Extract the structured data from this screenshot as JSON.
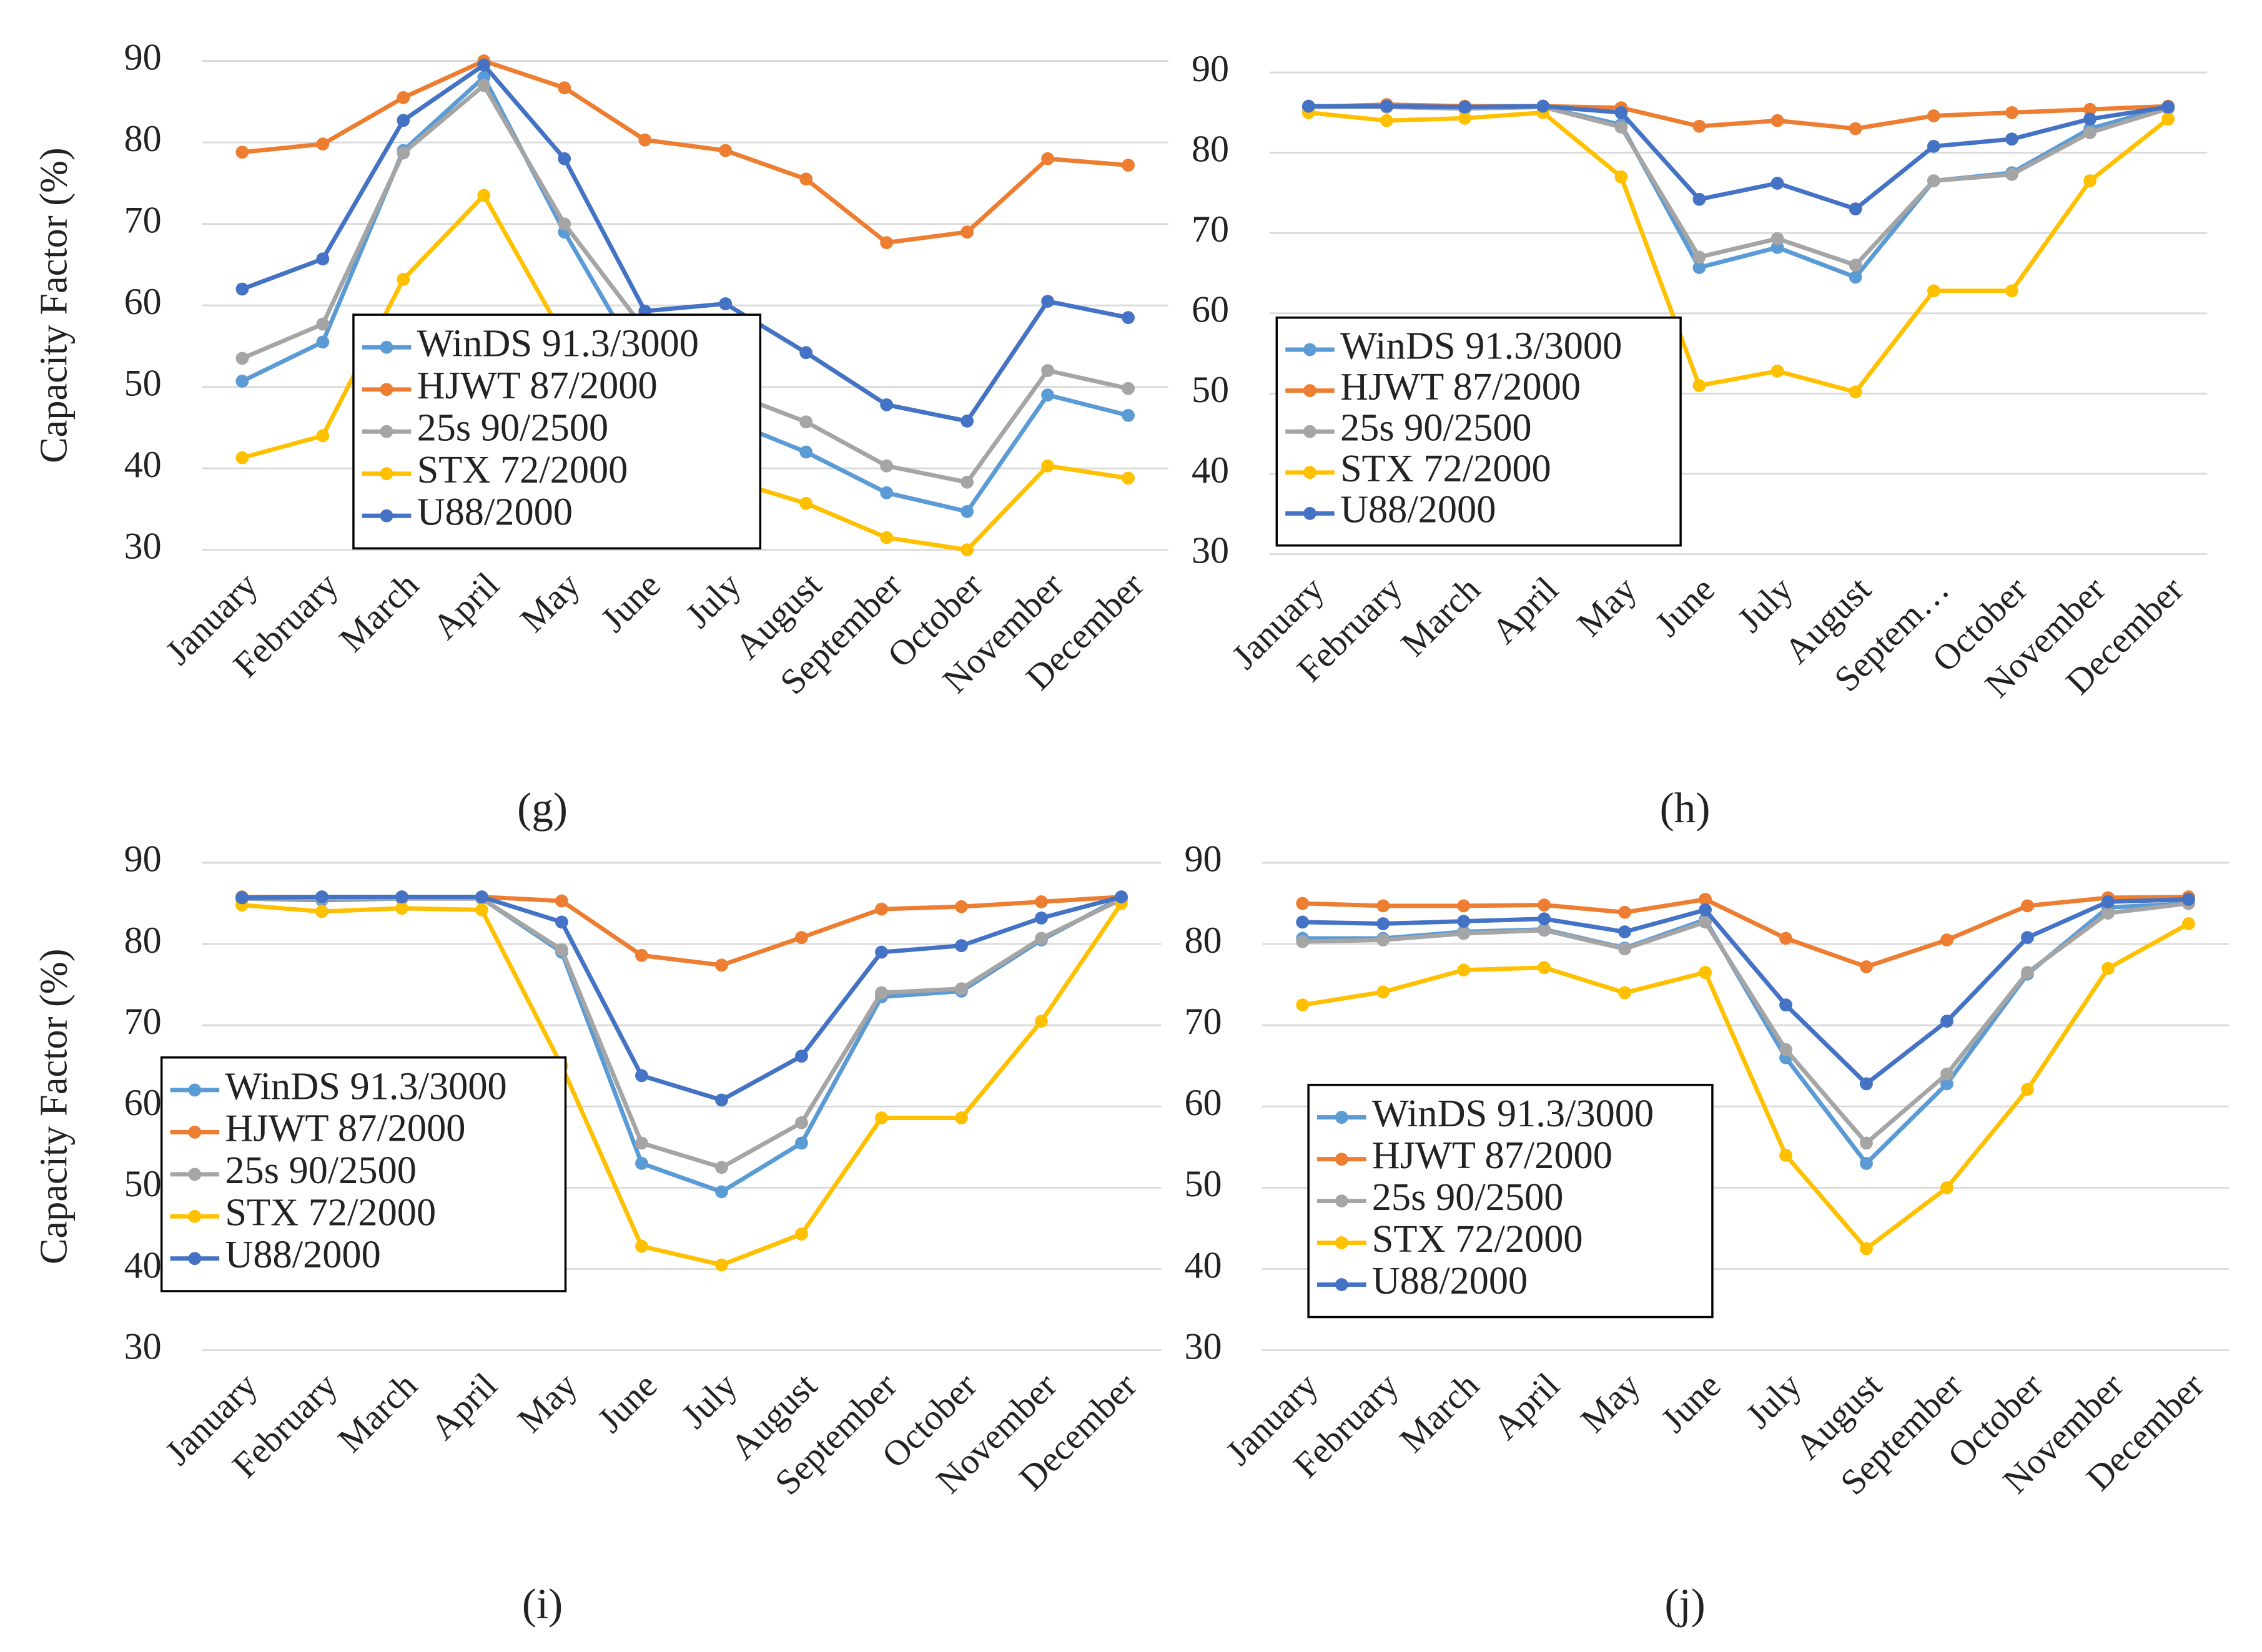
{
  "chart_data": [
    {
      "type": "line",
      "caption": "(g)",
      "y_label": "Capacity Factor (%)",
      "categories": [
        "January",
        "February",
        "March",
        "April",
        "May",
        "June",
        "July",
        "August",
        "September",
        "October",
        "November",
        "December"
      ],
      "ylim": [
        30,
        90
      ],
      "yticks": [
        30,
        40,
        50,
        60,
        70,
        80,
        90
      ],
      "grid": true,
      "series": [
        {
          "name": "WinDS 91.3/3000",
          "color": "#5b9bd5",
          "values": [
            50.7,
            55.5,
            79,
            88,
            69,
            52,
            46,
            42,
            37,
            34.7,
            49,
            46.5
          ]
        },
        {
          "name": "HJWT 87/2000",
          "color": "#ed7d31",
          "values": [
            78.8,
            79.8,
            85.5,
            90,
            86.7,
            80.3,
            79,
            75.5,
            67.7,
            69,
            78,
            77.2
          ]
        },
        {
          "name": "25s 90/2500",
          "color": "#a5a5a5",
          "values": [
            53.5,
            57.7,
            78.7,
            87,
            70,
            57,
            49.5,
            45.7,
            40.3,
            38.3,
            52,
            49.8
          ]
        },
        {
          "name": "STX 72/2000",
          "color": "#ffc000",
          "values": [
            41.3,
            44,
            63.2,
            73.5,
            56,
            45,
            38.7,
            35.7,
            31.5,
            30,
            40.3,
            38.8
          ]
        },
        {
          "name": "U88/2000",
          "color": "#4472c4",
          "values": [
            62,
            65.7,
            82.7,
            89.5,
            78,
            59.3,
            60.2,
            54.2,
            47.8,
            45.8,
            60.5,
            58.5
          ]
        }
      ]
    },
    {
      "type": "line",
      "caption": "(h)",
      "categories": [
        "January",
        "February",
        "March",
        "April",
        "May",
        "June",
        "July",
        "August",
        "Septem…",
        "October",
        "November",
        "December"
      ],
      "ylim": [
        30,
        90
      ],
      "yticks": [
        30,
        40,
        50,
        60,
        70,
        80,
        90
      ],
      "grid": true,
      "series": [
        {
          "name": "WinDS 91.3/3000",
          "color": "#5b9bd5",
          "values": [
            85.7,
            85.7,
            85.5,
            85.7,
            83.5,
            65.7,
            68.2,
            64.5,
            76.5,
            77.5,
            83,
            85.7
          ]
        },
        {
          "name": "HJWT 87/2000",
          "color": "#ed7d31",
          "values": [
            85.7,
            86,
            85.8,
            85.8,
            85.6,
            83.3,
            84,
            83,
            84.6,
            85,
            85.4,
            85.8
          ]
        },
        {
          "name": "25s 90/2500",
          "color": "#a5a5a5",
          "values": [
            85.7,
            85.7,
            85.5,
            85.7,
            83.2,
            67,
            69.3,
            66,
            76.5,
            77.3,
            82.5,
            85.5
          ]
        },
        {
          "name": "STX 72/2000",
          "color": "#ffc000",
          "values": [
            85,
            84,
            84.3,
            85,
            77,
            51,
            52.8,
            50.2,
            62.8,
            62.8,
            76.5,
            84.2
          ]
        },
        {
          "name": "U88/2000",
          "color": "#4472c4",
          "values": [
            85.8,
            85.8,
            85.7,
            85.8,
            85,
            74.2,
            76.2,
            73,
            80.8,
            81.7,
            84.2,
            85.7
          ]
        }
      ]
    },
    {
      "type": "line",
      "caption": "(i)",
      "y_label": "Capacity Factor (%)",
      "categories": [
        "January",
        "February",
        "March",
        "April",
        "May",
        "June",
        "July",
        "August",
        "September",
        "October",
        "November",
        "December"
      ],
      "ylim": [
        30,
        90
      ],
      "yticks": [
        30,
        40,
        50,
        60,
        70,
        80,
        90
      ],
      "grid": true,
      "series": [
        {
          "name": "WinDS 91.3/3000",
          "color": "#5b9bd5",
          "values": [
            85.6,
            85.4,
            85.6,
            85.6,
            79,
            53,
            49.5,
            55.5,
            73.5,
            74.2,
            80.5,
            85.7
          ]
        },
        {
          "name": "HJWT 87/2000",
          "color": "#ed7d31",
          "values": [
            85.8,
            85.8,
            85.8,
            85.8,
            85.3,
            78.6,
            77.4,
            80.8,
            84.3,
            84.6,
            85.2,
            85.8
          ]
        },
        {
          "name": "25s 90/2500",
          "color": "#a5a5a5",
          "values": [
            85.6,
            85.6,
            85.6,
            85.6,
            79.3,
            55.5,
            52.5,
            58,
            74,
            74.5,
            80.7,
            85.5
          ]
        },
        {
          "name": "STX 72/2000",
          "color": "#ffc000",
          "values": [
            84.8,
            84,
            84.4,
            84.2,
            65,
            42.8,
            40.5,
            44.3,
            58.6,
            58.6,
            70.5,
            85
          ]
        },
        {
          "name": "U88/2000",
          "color": "#4472c4",
          "values": [
            85.7,
            85.8,
            85.8,
            85.8,
            82.7,
            63.8,
            60.8,
            66.2,
            79,
            79.8,
            83.2,
            85.8
          ]
        }
      ]
    },
    {
      "type": "line",
      "caption": "(j)",
      "categories": [
        "January",
        "February",
        "March",
        "April",
        "May",
        "June",
        "July",
        "August",
        "September",
        "October",
        "November",
        "December"
      ],
      "ylim": [
        30,
        90
      ],
      "yticks": [
        30,
        40,
        50,
        60,
        70,
        80,
        90
      ],
      "grid": true,
      "series": [
        {
          "name": "WinDS 91.3/3000",
          "color": "#5b9bd5",
          "values": [
            80.7,
            80.7,
            81.5,
            81.8,
            79.5,
            83,
            66,
            53,
            62.8,
            76.3,
            84.5,
            85
          ]
        },
        {
          "name": "HJWT 87/2000",
          "color": "#ed7d31",
          "values": [
            85,
            84.7,
            84.7,
            84.8,
            83.9,
            85.5,
            80.7,
            77.2,
            80.5,
            84.7,
            85.7,
            85.8
          ]
        },
        {
          "name": "25s 90/2500",
          "color": "#a5a5a5",
          "values": [
            80.3,
            80.5,
            81.3,
            81.7,
            79.4,
            82.7,
            67,
            55.5,
            64,
            76.5,
            83.8,
            85
          ]
        },
        {
          "name": "STX 72/2000",
          "color": "#ffc000",
          "values": [
            72.5,
            74.1,
            76.8,
            77.1,
            74,
            76.5,
            54,
            42.5,
            50,
            62.1,
            77,
            82.5
          ]
        },
        {
          "name": "U88/2000",
          "color": "#4472c4",
          "values": [
            82.7,
            82.5,
            82.8,
            83.1,
            81.5,
            84.2,
            72.5,
            62.8,
            70.5,
            80.8,
            85.2,
            85.5
          ]
        }
      ]
    }
  ]
}
